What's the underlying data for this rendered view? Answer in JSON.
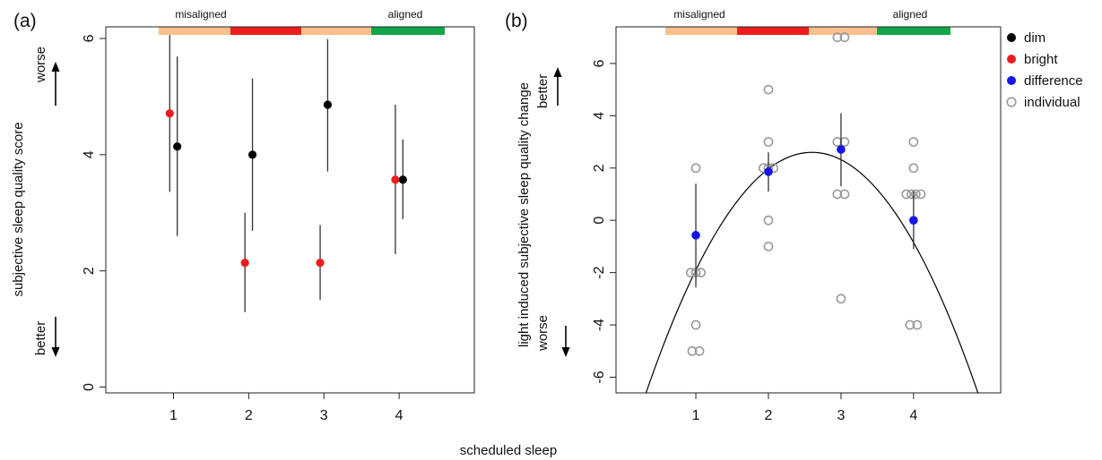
{
  "figure": {
    "shared_xlabel": "scheduled sleep"
  },
  "colors": {
    "dim": "#000000",
    "bright": "#ee1c1c",
    "difference": "#1515e6",
    "individual": "#9a9a9a",
    "band_light": "#f9c08e",
    "band_red": "#ee1c1c",
    "band_green": "#12a64b"
  },
  "bands": {
    "segments": [
      "light",
      "red",
      "light",
      "green"
    ],
    "left_label": "misaligned",
    "right_label": "aligned"
  },
  "legend": {
    "placement": "right",
    "items": [
      {
        "label": "dim",
        "marker": "filled",
        "color": "#000000"
      },
      {
        "label": "bright",
        "marker": "filled",
        "color": "#ee1c1c"
      },
      {
        "label": "difference",
        "marker": "filled",
        "color": "#1515e6"
      },
      {
        "label": "individual",
        "marker": "open",
        "color": "#9a9a9a"
      }
    ]
  },
  "chart_data": [
    {
      "type": "scatter",
      "panel_label": "(a)",
      "xlabel": "",
      "ylabel": "subjective sleep quality score",
      "direction_up": "worse",
      "direction_down": "better",
      "xlim": [
        0.1,
        5.0
      ],
      "ylim": [
        -0.1,
        6.2
      ],
      "xticks": [
        1,
        2,
        3,
        4
      ],
      "yticks": [
        0,
        2,
        4,
        6
      ],
      "grid": false,
      "series": [
        {
          "name": "bright",
          "color": "#ee1c1c",
          "offset": -0.05,
          "x": [
            1,
            2,
            3,
            4
          ],
          "y": [
            4.71,
            2.14,
            2.14,
            3.57
          ],
          "err_low": [
            3.36,
            1.29,
            1.5,
            2.29
          ],
          "err_high": [
            6.06,
            3.0,
            2.79,
            4.86
          ]
        },
        {
          "name": "dim",
          "color": "#000000",
          "offset": 0.05,
          "x": [
            1,
            2,
            3,
            4
          ],
          "y": [
            4.14,
            4.0,
            4.86,
            3.57
          ],
          "err_low": [
            2.6,
            2.69,
            3.71,
            2.89
          ],
          "err_high": [
            5.69,
            5.31,
            5.99,
            4.26
          ]
        }
      ]
    },
    {
      "type": "scatter",
      "panel_label": "(b)",
      "xlabel": "",
      "ylabel": "light induced subjective sleep quality change",
      "direction_up": "better",
      "direction_down": "worse",
      "xlim": [
        -0.1,
        5.2
      ],
      "ylim": [
        -6.6,
        7.4
      ],
      "xticks": [
        1,
        2,
        3,
        4
      ],
      "yticks": [
        -6,
        -4,
        -2,
        0,
        2,
        4,
        6
      ],
      "grid": false,
      "series": [
        {
          "name": "difference",
          "color": "#1515e6",
          "x": [
            1,
            2,
            3,
            4
          ],
          "y": [
            -0.57,
            1.86,
            2.71,
            0.0
          ],
          "err_low": [
            -2.57,
            1.1,
            1.3,
            -1.1
          ],
          "err_high": [
            1.4,
            2.6,
            4.1,
            1.1
          ]
        },
        {
          "name": "individual",
          "color": "#9a9a9a",
          "points": [
            [
              1.0,
              2
            ],
            [
              0.93,
              -2
            ],
            [
              1.0,
              -2
            ],
            [
              1.07,
              -2
            ],
            [
              1.0,
              -4
            ],
            [
              0.95,
              -5
            ],
            [
              1.05,
              -5
            ],
            [
              2.0,
              5
            ],
            [
              2.0,
              3
            ],
            [
              1.93,
              2
            ],
            [
              2.0,
              2
            ],
            [
              2.07,
              2
            ],
            [
              2.0,
              0
            ],
            [
              2.0,
              -1
            ],
            [
              2.95,
              7
            ],
            [
              3.05,
              7
            ],
            [
              2.95,
              3
            ],
            [
              3.05,
              3
            ],
            [
              2.95,
              1
            ],
            [
              3.05,
              1
            ],
            [
              3.0,
              -3
            ],
            [
              4.0,
              3
            ],
            [
              4.0,
              2
            ],
            [
              3.9,
              1
            ],
            [
              3.97,
              1
            ],
            [
              4.03,
              1
            ],
            [
              4.1,
              1
            ],
            [
              3.95,
              -4
            ],
            [
              4.05,
              -4
            ]
          ]
        },
        {
          "name": "quadratic fit",
          "color": "#000000",
          "curve": {
            "vertex_x": 2.6,
            "vertex_y": 2.6,
            "a": -1.76,
            "x_from": 0.0,
            "x_to": 5.2
          }
        }
      ]
    }
  ]
}
